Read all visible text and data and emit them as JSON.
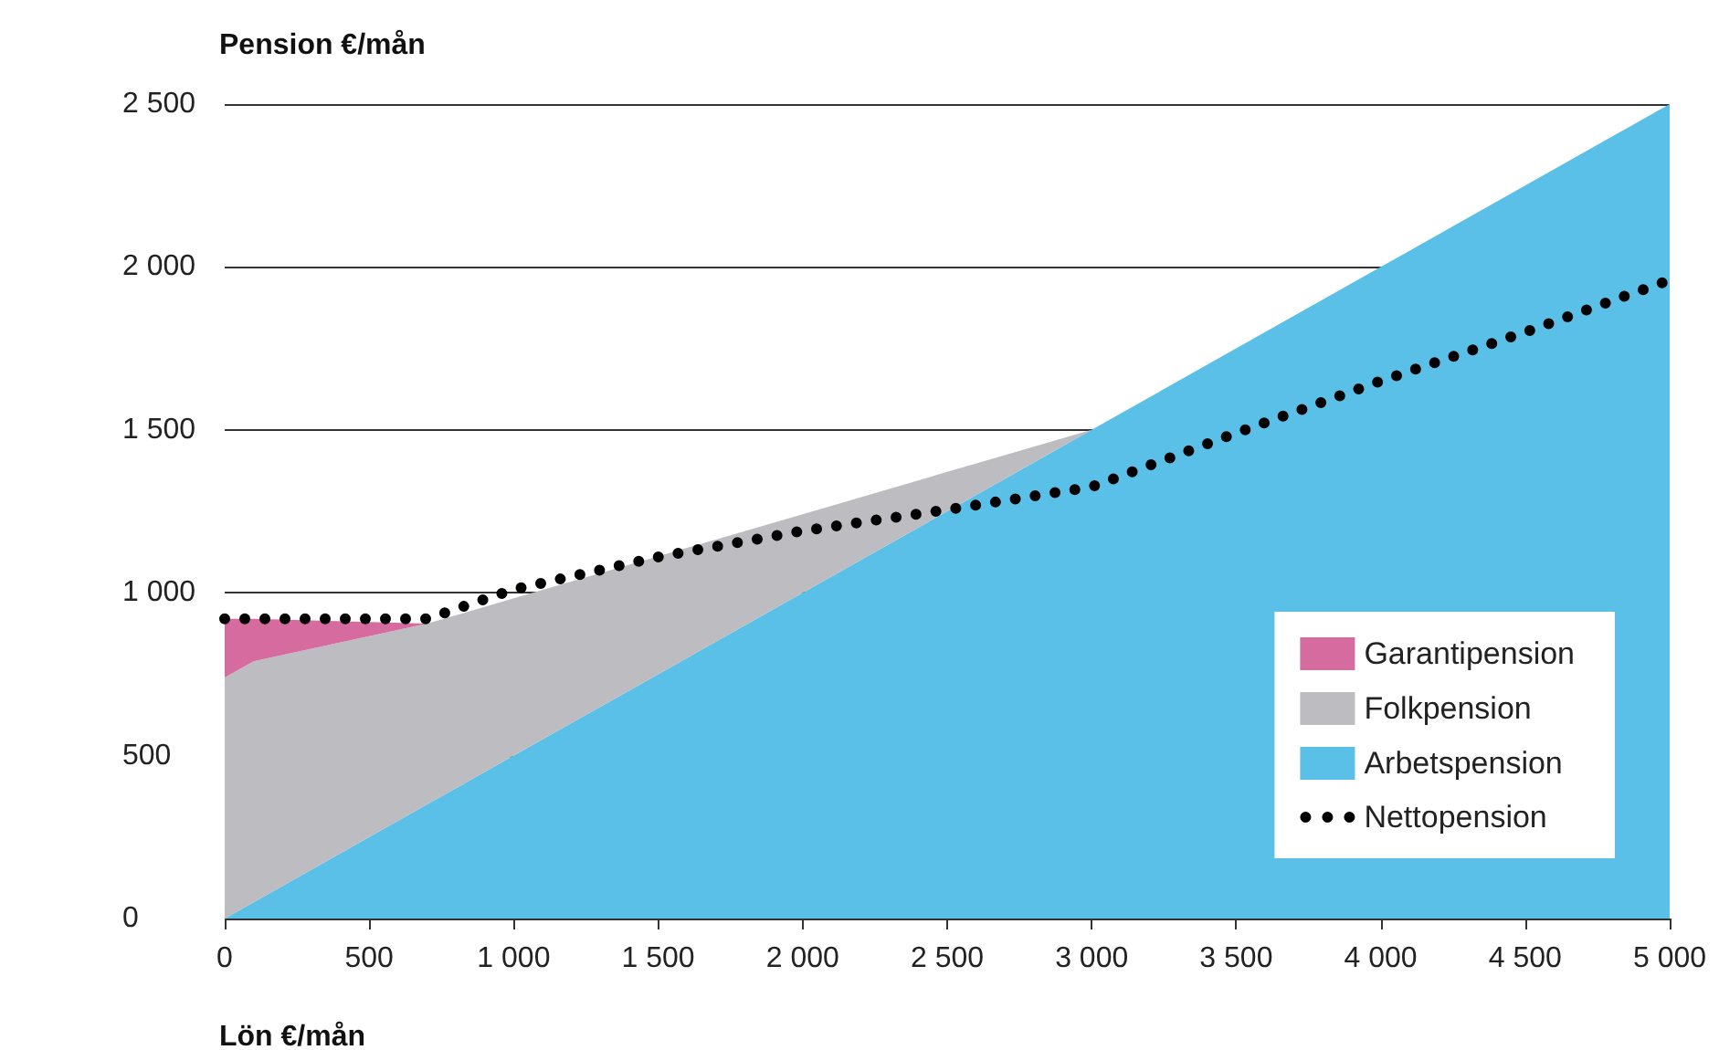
{
  "chart_data": {
    "type": "area",
    "stacked": true,
    "xlabel": "Lön €/mån",
    "ylabel": "Pension €/mån",
    "x": [
      0,
      100,
      700,
      1000,
      1500,
      2000,
      2500,
      3000,
      5000
    ],
    "series": [
      {
        "name": "Arbetspension",
        "color": "#5bc0e8",
        "values": [
          0,
          50,
          350,
          500,
          750,
          1000,
          1250,
          1500,
          2500
        ]
      },
      {
        "name": "Folkpension",
        "color": "#bdbcc1",
        "values": [
          740,
          740,
          555,
          483,
          362,
          241,
          121,
          0,
          null
        ]
      },
      {
        "name": "Garantipension",
        "color": "#d66ba0",
        "values": [
          180,
          130,
          0,
          null,
          null,
          null,
          null,
          null,
          null
        ]
      },
      {
        "name": "Nettopension",
        "type": "line",
        "color": "#000000",
        "line_style": "dotted",
        "marker": "none",
        "x": [
          0,
          700,
          1000,
          1500,
          2000,
          2500,
          3000,
          3500,
          4000,
          4500,
          5000
        ],
        "values": [
          920,
          920,
          1010,
          1110,
          1190,
          1255,
          1325,
          1490,
          1650,
          1800,
          1960
        ]
      }
    ],
    "xlim": [
      0,
      5000
    ],
    "ylim": [
      0,
      2500
    ],
    "xticks": [
      0,
      500,
      {
        "value": 1000,
        "label": "1 000"
      },
      {
        "value": 1500,
        "label": "1 500"
      },
      {
        "value": 2000,
        "label": "2 000"
      },
      {
        "value": 2500,
        "label": "2 500"
      },
      {
        "value": 3000,
        "label": "3 000"
      },
      {
        "value": 3500,
        "label": "3 500"
      },
      {
        "value": 4000,
        "label": "4 000"
      },
      {
        "value": 4500,
        "label": "4 500"
      },
      {
        "value": 5000,
        "label": "5 000"
      }
    ],
    "yticks": [
      0,
      500,
      {
        "value": 1000,
        "label": "1 000"
      },
      {
        "value": 1500,
        "label": "1 500"
      },
      {
        "value": 2000,
        "label": "2 000"
      },
      {
        "value": 2500,
        "label": "2 500"
      }
    ],
    "grid": "y",
    "legend": "bottom right"
  }
}
